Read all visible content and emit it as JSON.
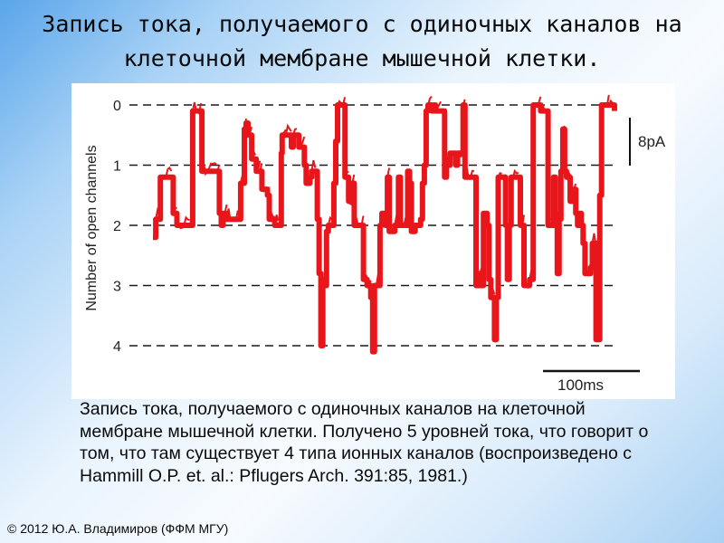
{
  "slide": {
    "title": "Запись тока, получаемого с одиночных каналов на клеточной мембране мышечной клетки.",
    "caption": "Запись тока, получаемого с одиночных каналов на клеточной мембране мышечной клетки. Получено 5 уровней тока, что говорит о том, что там существует 4 типа ионных каналов (воспроизведено с Hammill O.P. et. al.: Pflugers Arch. 391:85, 1981.)",
    "copyright": "© 2012 Ю.А. Владимиров (ФФМ МГУ)"
  },
  "chart_data": {
    "type": "line",
    "ylabel": "Number of open channels",
    "y_ticks": [
      "0",
      "1",
      "2",
      "3",
      "4"
    ],
    "ylim": [
      0,
      4
    ],
    "y_inverted": true,
    "grid": "dashed horizontal lines at each level",
    "trace_color": "#e8161b",
    "scale_bar_current": "8pA",
    "scale_bar_time": "100ms",
    "series": [
      {
        "t_ms": [
          0,
          3,
          8,
          14,
          20,
          22,
          26,
          40,
          43,
          48,
          52,
          53,
          70,
          72,
          74,
          76,
          80,
          90,
          95,
          99,
          101,
          103,
          107,
          112,
          116,
          118,
          124,
          126,
          132,
          137,
          139,
          140,
          144,
          150,
          152,
          156,
          158,
          164,
          166,
          170,
          172,
          176,
          178,
          180,
          182,
          184,
          186,
          188,
          190,
          196,
          198,
          200,
          204,
          208,
          212,
          216,
          218,
          222,
          226,
          228,
          232,
          236,
          238,
          240,
          242,
          246,
          248,
          252,
          254,
          256,
          262,
          266,
          268,
          272,
          276,
          278,
          280,
          284,
          290,
          292,
          294,
          296,
          298,
          302,
          304,
          306,
          312,
          316,
          318,
          322,
          328,
          330,
          336,
          338,
          344,
          348,
          350,
          354,
          356,
          358,
          362,
          364,
          366,
          370,
          372,
          374,
          378,
          382,
          384,
          386,
          388,
          396,
          398,
          402,
          404,
          408,
          412,
          416,
          420,
          424,
          428,
          434,
          436,
          438,
          440,
          442,
          444,
          446,
          448,
          452,
          456,
          458,
          460,
          462,
          464,
          466,
          468,
          470,
          472,
          474,
          476,
          480,
          484,
          486,
          490,
          494,
          500
        ],
        "n_open": [
          2.2,
          1.9,
          1.2,
          1.2,
          1.2,
          1.8,
          2.0,
          2.0,
          0.1,
          0.1,
          0.1,
          1.1,
          1.1,
          1.8,
          2.0,
          1.8,
          1.9,
          1.9,
          1.3,
          0.4,
          0.3,
          0.5,
          0.9,
          1.1,
          1.1,
          1.4,
          1.5,
          1.9,
          2.0,
          2.0,
          0.8,
          0.5,
          0.5,
          0.7,
          0.5,
          0.5,
          0.7,
          1.0,
          1.3,
          1.2,
          1.1,
          1.1,
          1.9,
          2.8,
          4.0,
          2.9,
          3.0,
          2.1,
          2.0,
          1.3,
          0.6,
          0.0,
          0.0,
          1.2,
          1.6,
          1.3,
          2.0,
          2.0,
          2.0,
          2.9,
          3.0,
          3.2,
          4.1,
          3.0,
          3.0,
          2.0,
          1.8,
          2.0,
          1.2,
          2.1,
          2.0,
          1.2,
          2.0,
          2.0,
          1.1,
          1.3,
          2.1,
          2.0,
          1.9,
          1.3,
          1.0,
          0.1,
          0.0,
          0.1,
          0.0,
          0.1,
          0.1,
          1.2,
          1.0,
          0.8,
          1.0,
          0.8,
          0.0,
          1.2,
          1.2,
          1.2,
          3.0,
          2.8,
          3.0,
          1.8,
          2.0,
          2.9,
          3.2,
          3.9,
          3.2,
          1.2,
          1.2,
          2.0,
          2.9,
          2.0,
          1.2,
          1.2,
          2.0,
          3.0,
          3.0,
          2.9,
          0.0,
          0.0,
          0.1,
          0.1,
          2.0,
          1.2,
          1.8,
          2.8,
          1.9,
          1.1,
          0.4,
          1.1,
          1.2,
          1.6,
          1.4,
          1.8,
          2.0,
          1.8,
          2.0,
          2.3,
          2.8,
          2.8,
          2.8,
          2.7,
          2.3,
          3.9,
          1.5,
          0.0,
          0.0,
          0.0,
          0.1
        ]
      }
    ]
  }
}
